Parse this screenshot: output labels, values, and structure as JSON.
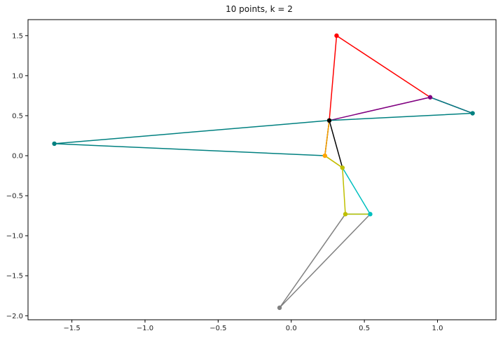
{
  "chart_data": {
    "type": "line",
    "title": "10 points, k = 2",
    "xlabel": "",
    "ylabel": "",
    "xlim": [
      -1.8,
      1.4
    ],
    "ylim": [
      -2.05,
      1.7
    ],
    "grid": false,
    "x_ticks": [
      -1.5,
      -1.0,
      -0.5,
      0.0,
      0.5,
      1.0
    ],
    "x_tick_labels": [
      "−1.5",
      "−1.0",
      "−0.5",
      "0.0",
      "0.5",
      "1.0"
    ],
    "y_ticks": [
      1.5,
      1.0,
      0.5,
      0.0,
      -0.5,
      -1.0,
      -1.5,
      -2.0
    ],
    "y_tick_labels": [
      "1.5",
      "1.0",
      "0.5",
      "0.0",
      "−0.5",
      "−1.0",
      "−1.5",
      "−2.0"
    ],
    "series": [
      {
        "color": "#ff0000",
        "x": [
          0.26,
          0.31,
          0.95
        ],
        "y": [
          0.44,
          1.5,
          0.73
        ]
      },
      {
        "color": "#800080",
        "x": [
          0.26,
          0.95,
          1.24
        ],
        "y": [
          0.44,
          0.73,
          0.53
        ]
      },
      {
        "color": "#008080",
        "x": [
          0.95,
          1.24,
          0.26
        ],
        "y": [
          0.73,
          0.53,
          0.44
        ]
      },
      {
        "color": "#008080",
        "x": [
          0.26,
          -1.62,
          0.23
        ],
        "y": [
          0.44,
          0.15,
          0.0
        ]
      },
      {
        "color": "#000000",
        "x": [
          0.23,
          0.26,
          0.35
        ],
        "y": [
          0.0,
          0.44,
          -0.15
        ]
      },
      {
        "color": "#ffa500",
        "x": [
          0.26,
          0.23,
          0.35
        ],
        "y": [
          0.44,
          0.0,
          -0.15
        ]
      },
      {
        "color": "#00bfbf",
        "x": [
          0.35,
          0.54,
          0.37
        ],
        "y": [
          -0.15,
          -0.73,
          -0.73
        ]
      },
      {
        "color": "#bfbf00",
        "x": [
          0.23,
          0.35,
          0.37,
          0.54
        ],
        "y": [
          0.0,
          -0.15,
          -0.73,
          -0.73
        ]
      },
      {
        "color": "#808080",
        "x": [
          0.37,
          -0.08,
          0.54
        ],
        "y": [
          -0.73,
          -1.9,
          -0.73
        ]
      }
    ],
    "points": [
      {
        "x": 0.31,
        "y": 1.5,
        "color": "#ff0000"
      },
      {
        "x": 0.95,
        "y": 0.73,
        "color": "#800080"
      },
      {
        "x": 1.24,
        "y": 0.53,
        "color": "#008080"
      },
      {
        "x": 0.26,
        "y": 0.44,
        "color": "#000000"
      },
      {
        "x": -1.62,
        "y": 0.15,
        "color": "#008080"
      },
      {
        "x": 0.23,
        "y": 0.0,
        "color": "#ffa500"
      },
      {
        "x": 0.35,
        "y": -0.15,
        "color": "#bfbf00"
      },
      {
        "x": 0.37,
        "y": -0.73,
        "color": "#bfbf00"
      },
      {
        "x": 0.54,
        "y": -0.73,
        "color": "#00bfbf"
      },
      {
        "x": -0.08,
        "y": -1.9,
        "color": "#808080"
      }
    ]
  }
}
